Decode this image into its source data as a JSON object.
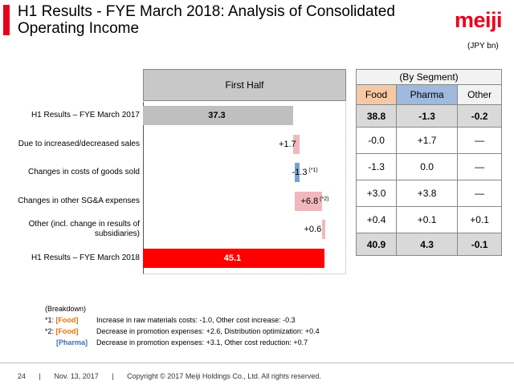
{
  "header": {
    "title": "H1 Results - FYE March 2018: Analysis of Consolidated Operating Income",
    "logo": "meiji",
    "unit": "(JPY bn)"
  },
  "waterfall": {
    "head_label": "First Half",
    "rows": [
      {
        "label": "H1 Results – FYE March 2017",
        "value_text": "37.3",
        "value": 37.3,
        "kind": "total_prev",
        "note": ""
      },
      {
        "label": "Due to increased/decreased sales",
        "value_text": "+1.7",
        "value": 1.7,
        "kind": "delta",
        "note": ""
      },
      {
        "label": "Changes in costs of goods sold",
        "value_text": "-1.3",
        "value": -1.3,
        "kind": "delta_neg",
        "note": "(*1)"
      },
      {
        "label": "Changes in other SG&A expenses",
        "value_text": "+6.8",
        "value": 6.8,
        "kind": "delta",
        "note": "(*2)"
      },
      {
        "label": "Other (incl. change in results of subsidiaries)",
        "value_text": "+0.6",
        "value": 0.6,
        "kind": "delta",
        "note": ""
      },
      {
        "label": "H1 Results – FYE March 2018",
        "value_text": "45.1",
        "value": 45.1,
        "kind": "total_cur",
        "note": ""
      }
    ],
    "colors": {
      "prev": "#bfbfbf",
      "delta": "#f0b8bd",
      "neg": "#7b9fd3",
      "cur": "#ff0000"
    }
  },
  "segment": {
    "title": "(By Segment)",
    "headers": [
      "Food",
      "Pharma",
      "Other"
    ],
    "rows": [
      [
        "38.8",
        "-1.3",
        "-0.2"
      ],
      [
        "-0.0",
        "+1.7",
        "—"
      ],
      [
        "-1.3",
        "0.0",
        "—"
      ],
      [
        "+3.0",
        "+3.8",
        "—"
      ],
      [
        "+0.4",
        "+0.1",
        "+0.1"
      ],
      [
        "40.9",
        "4.3",
        "-0.1"
      ]
    ]
  },
  "breakdown": {
    "title": "(Breakdown)",
    "items": [
      {
        "key_prefix": "*1: ",
        "tag": "[Food]",
        "tag_class": "food",
        "text": "Increase in raw materials costs: -1.0, Other cost increase: -0.3"
      },
      {
        "key_prefix": "*2: ",
        "tag": "[Food]",
        "tag_class": "food",
        "text": "Decrease in promotion expenses: +2.6, Distribution optimization: +0.4"
      },
      {
        "key_prefix": "",
        "tag": "[Pharma]",
        "tag_class": "pharma",
        "text": "Decrease in promotion expenses: +3.1,  Other cost reduction: +0.7"
      }
    ]
  },
  "footer": {
    "page": "24",
    "date": "Nov. 13, 2017",
    "copyright": "Copyright © 2017 Meiji Holdings Co., Ltd. All rights reserved."
  }
}
